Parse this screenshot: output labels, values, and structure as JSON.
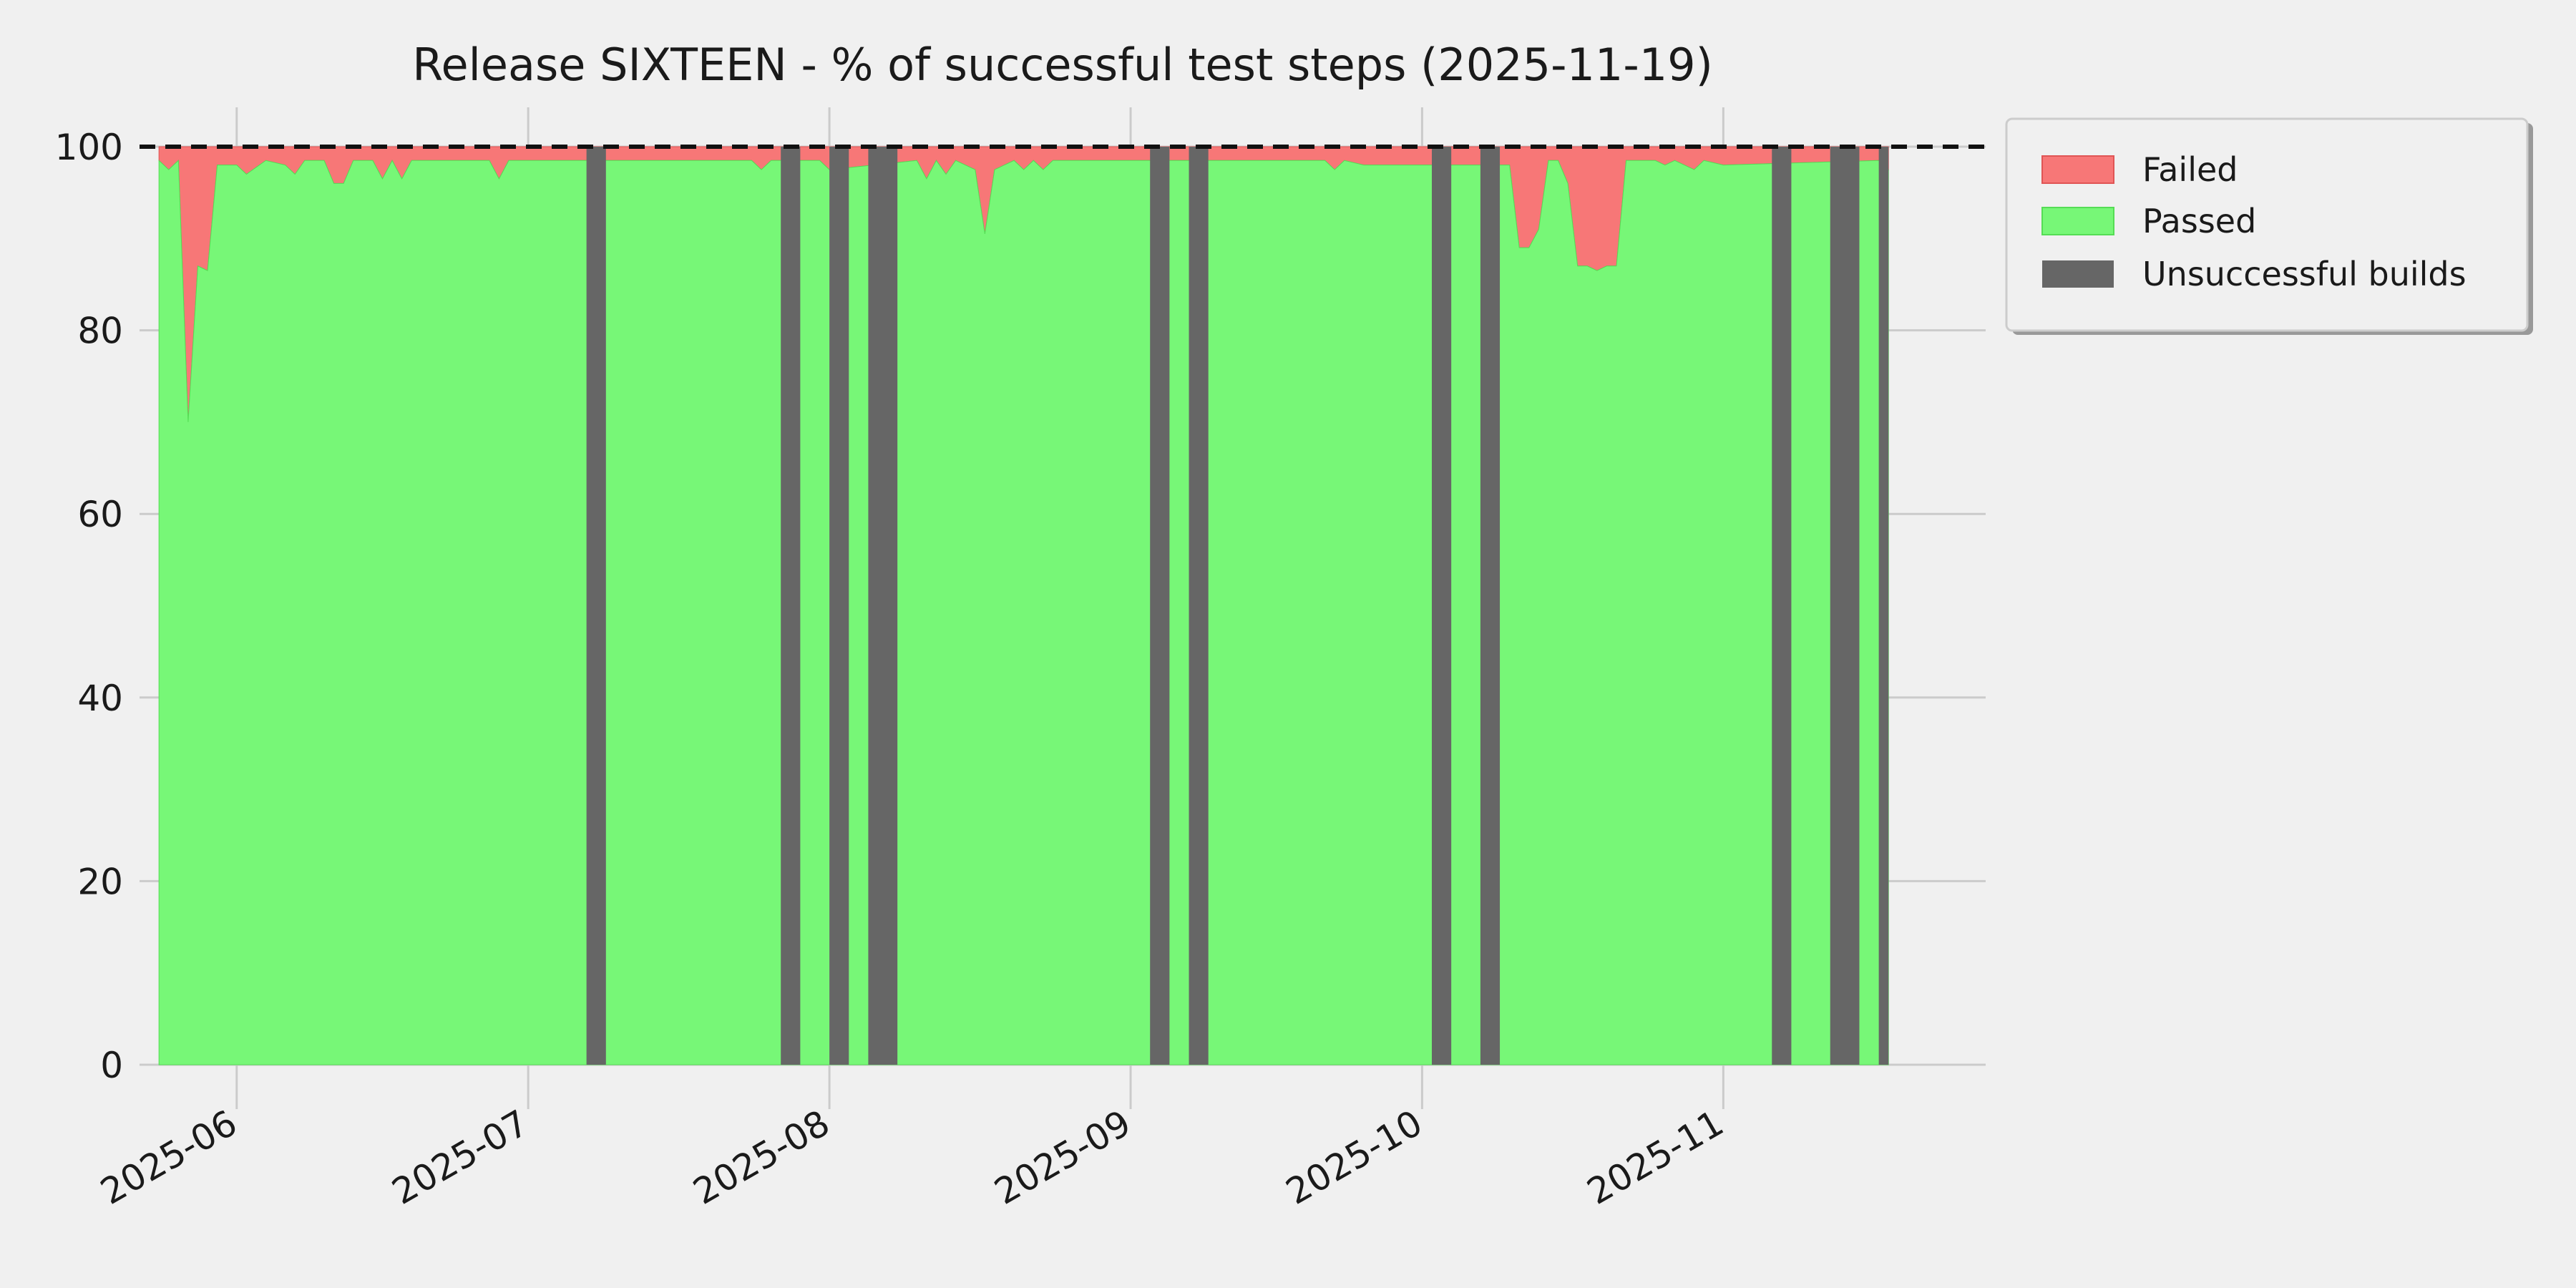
{
  "chart_data": {
    "type": "area",
    "title": "Release SIXTEEN - % of successful test steps (2025-11-19)",
    "xlabel": "",
    "ylabel": "",
    "ylim": [
      0,
      100
    ],
    "xlim": [
      "2025-05-22",
      "2025-11-28"
    ],
    "yticks": [
      0,
      20,
      40,
      60,
      80,
      100
    ],
    "xticks": [
      "2025-06-01",
      "2025-07-01",
      "2025-08-01",
      "2025-09-01",
      "2025-10-01",
      "2025-11-01"
    ],
    "xtick_labels": [
      "2025-06",
      "2025-07",
      "2025-08",
      "2025-09",
      "2025-10",
      "2025-11"
    ],
    "grid": true,
    "reference_line": 100,
    "legend_position": "outside-top-right",
    "legend": [
      "Failed",
      "Passed",
      "Unsuccessful builds"
    ],
    "series": [
      {
        "name": "Passed",
        "color": "#77f777",
        "points": [
          [
            "2025-05-24",
            98.5
          ],
          [
            "2025-05-25",
            97.5
          ],
          [
            "2025-05-26",
            98.5
          ],
          [
            "2025-05-27",
            70
          ],
          [
            "2025-05-28",
            87
          ],
          [
            "2025-05-29",
            86.5
          ],
          [
            "2025-05-30",
            98
          ],
          [
            "2025-06-01",
            98
          ],
          [
            "2025-06-02",
            97
          ],
          [
            "2025-06-04",
            98.5
          ],
          [
            "2025-06-06",
            98
          ],
          [
            "2025-06-07",
            97
          ],
          [
            "2025-06-08",
            98.5
          ],
          [
            "2025-06-10",
            98.5
          ],
          [
            "2025-06-11",
            96
          ],
          [
            "2025-06-12",
            96
          ],
          [
            "2025-06-13",
            98.5
          ],
          [
            "2025-06-15",
            98.5
          ],
          [
            "2025-06-16",
            96.5
          ],
          [
            "2025-06-17",
            98.5
          ],
          [
            "2025-06-18",
            96.5
          ],
          [
            "2025-06-19",
            98.5
          ],
          [
            "2025-06-27",
            98.5
          ],
          [
            "2025-06-28",
            96.5
          ],
          [
            "2025-06-29",
            98.5
          ],
          [
            "2025-07-04",
            98.5
          ],
          [
            "2025-07-24",
            98.5
          ],
          [
            "2025-07-25",
            97.5
          ],
          [
            "2025-07-26",
            98.5
          ],
          [
            "2025-07-31",
            98.5
          ],
          [
            "2025-08-01",
            97.5
          ],
          [
            "2025-08-10",
            98.5
          ],
          [
            "2025-08-11",
            96.5
          ],
          [
            "2025-08-12",
            98.5
          ],
          [
            "2025-08-13",
            97
          ],
          [
            "2025-08-14",
            98.5
          ],
          [
            "2025-08-16",
            97.5
          ],
          [
            "2025-08-17",
            90.5
          ],
          [
            "2025-08-18",
            97.5
          ],
          [
            "2025-08-20",
            98.5
          ],
          [
            "2025-08-21",
            97.5
          ],
          [
            "2025-08-22",
            98.5
          ],
          [
            "2025-08-23",
            97.5
          ],
          [
            "2025-08-24",
            98.5
          ],
          [
            "2025-09-21",
            98.5
          ],
          [
            "2025-09-22",
            97.5
          ],
          [
            "2025-09-23",
            98.5
          ],
          [
            "2025-09-25",
            98
          ],
          [
            "2025-10-10",
            98
          ],
          [
            "2025-10-11",
            89
          ],
          [
            "2025-10-12",
            89
          ],
          [
            "2025-10-13",
            91
          ],
          [
            "2025-10-14",
            98.5
          ],
          [
            "2025-10-15",
            98.5
          ],
          [
            "2025-10-16",
            96
          ],
          [
            "2025-10-17",
            87
          ],
          [
            "2025-10-18",
            87
          ],
          [
            "2025-10-19",
            86.5
          ],
          [
            "2025-10-20",
            87
          ],
          [
            "2025-10-21",
            87
          ],
          [
            "2025-10-22",
            98.5
          ],
          [
            "2025-10-25",
            98.5
          ],
          [
            "2025-10-26",
            98
          ],
          [
            "2025-10-27",
            98.5
          ],
          [
            "2025-10-29",
            97.5
          ],
          [
            "2025-10-30",
            98.5
          ],
          [
            "2025-11-01",
            98
          ],
          [
            "2025-11-17",
            98.5
          ],
          [
            "2025-11-18",
            97.5
          ]
        ]
      },
      {
        "name": "Failed",
        "color": "#f77777",
        "description_values": "100 minus Passed at each date"
      }
    ],
    "unsuccessful_builds": {
      "name": "Unsuccessful builds",
      "color": "#666666",
      "ranges": [
        [
          "2025-07-07",
          "2025-07-09"
        ],
        [
          "2025-07-27",
          "2025-07-29"
        ],
        [
          "2025-08-01",
          "2025-08-03"
        ],
        [
          "2025-08-05",
          "2025-08-08"
        ],
        [
          "2025-09-03",
          "2025-09-05"
        ],
        [
          "2025-09-07",
          "2025-09-09"
        ],
        [
          "2025-10-02",
          "2025-10-04"
        ],
        [
          "2025-10-07",
          "2025-10-09"
        ],
        [
          "2025-11-06",
          "2025-11-08"
        ],
        [
          "2025-11-12",
          "2025-11-15"
        ],
        [
          "2025-11-17",
          "2025-11-18"
        ]
      ]
    }
  }
}
